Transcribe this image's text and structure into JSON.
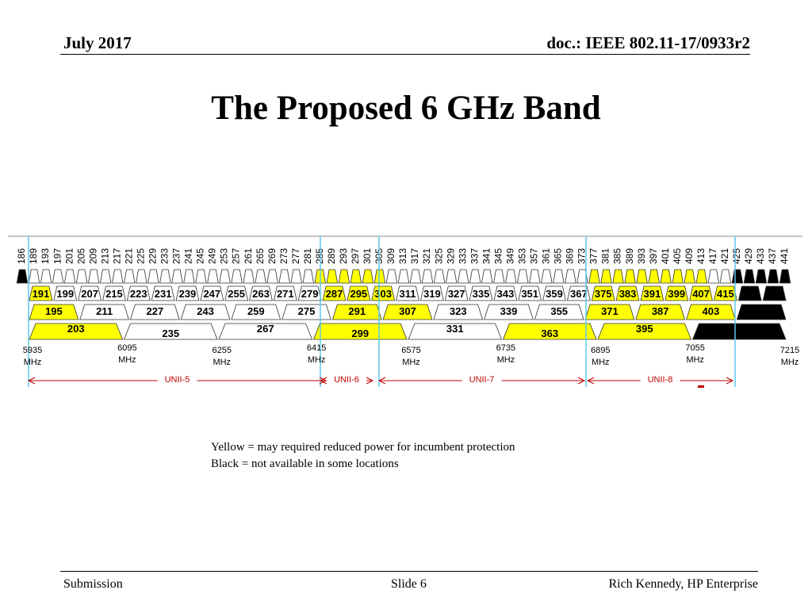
{
  "header": {
    "date": "July 2017",
    "doc": "doc.: IEEE 802.11-17/0933r2"
  },
  "title": "The Proposed 6 GHz Band",
  "band": {
    "colors": {
      "yellow": "#ffff00",
      "white": "#ffffff",
      "black": "#000000",
      "marker": "#5bc8ec",
      "arrow": "#c00000"
    },
    "ch20": [
      "186",
      "189",
      "193",
      "197",
      "201",
      "205",
      "209",
      "213",
      "217",
      "221",
      "225",
      "229",
      "233",
      "237",
      "241",
      "245",
      "249",
      "253",
      "257",
      "261",
      "265",
      "269",
      "273",
      "277",
      "281",
      "285",
      "289",
      "293",
      "297",
      "301",
      "305",
      "309",
      "313",
      "317",
      "321",
      "325",
      "329",
      "333",
      "337",
      "341",
      "345",
      "349",
      "353",
      "357",
      "361",
      "365",
      "369",
      "373",
      "377",
      "381",
      "385",
      "389",
      "393",
      "397",
      "401",
      "405",
      "409",
      "413",
      "417",
      "421",
      "425",
      "429",
      "433",
      "437",
      "441"
    ],
    "ch40": [
      {
        "label": "191",
        "color": "yellow"
      },
      {
        "label": "199",
        "color": "white"
      },
      {
        "label": "207",
        "color": "white"
      },
      {
        "label": "215",
        "color": "white"
      },
      {
        "label": "223",
        "color": "white"
      },
      {
        "label": "231",
        "color": "white"
      },
      {
        "label": "239",
        "color": "white"
      },
      {
        "label": "247",
        "color": "white"
      },
      {
        "label": "255",
        "color": "white"
      },
      {
        "label": "263",
        "color": "white"
      },
      {
        "label": "271",
        "color": "white"
      },
      {
        "label": "279",
        "color": "white"
      },
      {
        "label": "287",
        "color": "yellow"
      },
      {
        "label": "295",
        "color": "yellow"
      },
      {
        "label": "303",
        "color": "yellow"
      },
      {
        "label": "311",
        "color": "white"
      },
      {
        "label": "319",
        "color": "white"
      },
      {
        "label": "327",
        "color": "white"
      },
      {
        "label": "335",
        "color": "white"
      },
      {
        "label": "343",
        "color": "white"
      },
      {
        "label": "351",
        "color": "white"
      },
      {
        "label": "359",
        "color": "white"
      },
      {
        "label": "367",
        "color": "white"
      },
      {
        "label": "375",
        "color": "yellow"
      },
      {
        "label": "383",
        "color": "yellow"
      },
      {
        "label": "391",
        "color": "yellow"
      },
      {
        "label": "399",
        "color": "yellow"
      },
      {
        "label": "407",
        "color": "yellow"
      },
      {
        "label": "415",
        "color": "yellow"
      },
      {
        "label": "",
        "color": "black"
      },
      {
        "label": "",
        "color": "black"
      }
    ],
    "ch80": [
      {
        "label": "195",
        "color": "yellow"
      },
      {
        "label": "211",
        "color": "white"
      },
      {
        "label": "227",
        "color": "white"
      },
      {
        "label": "243",
        "color": "white"
      },
      {
        "label": "259",
        "color": "white"
      },
      {
        "label": "275",
        "color": "white"
      },
      {
        "label": "291",
        "color": "yellow"
      },
      {
        "label": "307",
        "color": "yellow"
      },
      {
        "label": "323",
        "color": "white"
      },
      {
        "label": "339",
        "color": "white"
      },
      {
        "label": "355",
        "color": "white"
      },
      {
        "label": "371",
        "color": "yellow"
      },
      {
        "label": "387",
        "color": "yellow"
      },
      {
        "label": "403",
        "color": "yellow"
      },
      {
        "label": "",
        "color": "black"
      }
    ],
    "ch160": [
      {
        "label": "203",
        "color": "yellow"
      },
      {
        "label": "235",
        "color": "white"
      },
      {
        "label": "267",
        "color": "white"
      },
      {
        "label": "299",
        "color": "yellow"
      },
      {
        "label": "331",
        "color": "white"
      },
      {
        "label": "363",
        "color": "yellow"
      },
      {
        "label": "395",
        "color": "yellow"
      },
      {
        "label": "",
        "color": "black"
      }
    ],
    "freqs": [
      {
        "mhz": "5935",
        "unit": "MHz"
      },
      {
        "mhz": "6095",
        "unit": "MHz"
      },
      {
        "mhz": "6255",
        "unit": "MHz"
      },
      {
        "mhz": "6415",
        "unit": "MHz"
      },
      {
        "mhz": "6575",
        "unit": "MHz"
      },
      {
        "mhz": "6735",
        "unit": "MHz"
      },
      {
        "mhz": "6895",
        "unit": "MHz"
      },
      {
        "mhz": "7055",
        "unit": "MHz"
      },
      {
        "mhz": "7215",
        "unit": "MHz"
      }
    ],
    "unii": [
      {
        "label": "UNII-5"
      },
      {
        "label": "UNII-6"
      },
      {
        "label": "UNII-7"
      },
      {
        "label": "UNII-8"
      }
    ]
  },
  "legend": {
    "line1": "Yellow = may required reduced power for incumbent protection",
    "line2": "Black = not available in some locations"
  },
  "footer": {
    "left": "Submission",
    "center": "Slide 6",
    "right": "Rich Kennedy, HP Enterprise"
  }
}
